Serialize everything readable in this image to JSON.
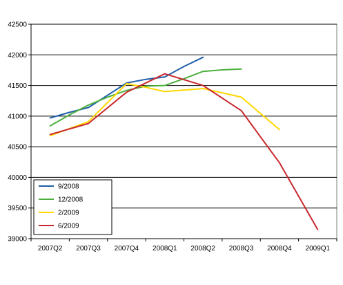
{
  "chart_data": {
    "type": "line",
    "title": "",
    "xlabel": "",
    "ylabel": "",
    "categories": [
      "2007Q2",
      "2007Q3",
      "2007Q4",
      "2008Q1",
      "2008Q2",
      "2008Q3",
      "2008Q4",
      "2009Q1"
    ],
    "y_ticks": [
      "39000",
      "39500",
      "40000",
      "40500",
      "41000",
      "41500",
      "42000",
      "42500"
    ],
    "ylim": [
      39000,
      42500
    ],
    "grid": "horizontal",
    "legend_position": "bottom-left",
    "series": [
      {
        "name": "9/2008",
        "color": "#1f5ea8",
        "points": [
          [
            0,
            40970
          ],
          [
            0.5,
            41060
          ],
          [
            1,
            41140
          ],
          [
            1.5,
            41340
          ],
          [
            2,
            41540
          ],
          [
            2.5,
            41600
          ],
          [
            3,
            41640
          ],
          [
            3.5,
            41810
          ],
          [
            4,
            41960
          ]
        ]
      },
      {
        "name": "12/2008",
        "color": "#4caf3d",
        "points": [
          [
            0,
            40840
          ],
          [
            0.5,
            41020
          ],
          [
            1,
            41180
          ],
          [
            1.5,
            41310
          ],
          [
            2,
            41420
          ],
          [
            2.5,
            41490
          ],
          [
            3,
            41500
          ],
          [
            3.5,
            41610
          ],
          [
            4,
            41730
          ],
          [
            4.5,
            41755
          ],
          [
            5,
            41770
          ]
        ]
      },
      {
        "name": "2/2009",
        "color": "#ffd700",
        "points": [
          [
            0,
            40680
          ],
          [
            1,
            40910
          ],
          [
            2,
            41530
          ],
          [
            2.5,
            41470
          ],
          [
            3,
            41400
          ],
          [
            4,
            41450
          ],
          [
            5,
            41310
          ],
          [
            6,
            40780
          ]
        ]
      },
      {
        "name": "6/2009",
        "color": "#c8282d",
        "points": [
          [
            0,
            40700
          ],
          [
            1,
            40880
          ],
          [
            2,
            41390
          ],
          [
            3,
            41690
          ],
          [
            4,
            41500
          ],
          [
            5,
            41090
          ],
          [
            6,
            40240
          ],
          [
            7,
            39150
          ]
        ]
      }
    ]
  }
}
